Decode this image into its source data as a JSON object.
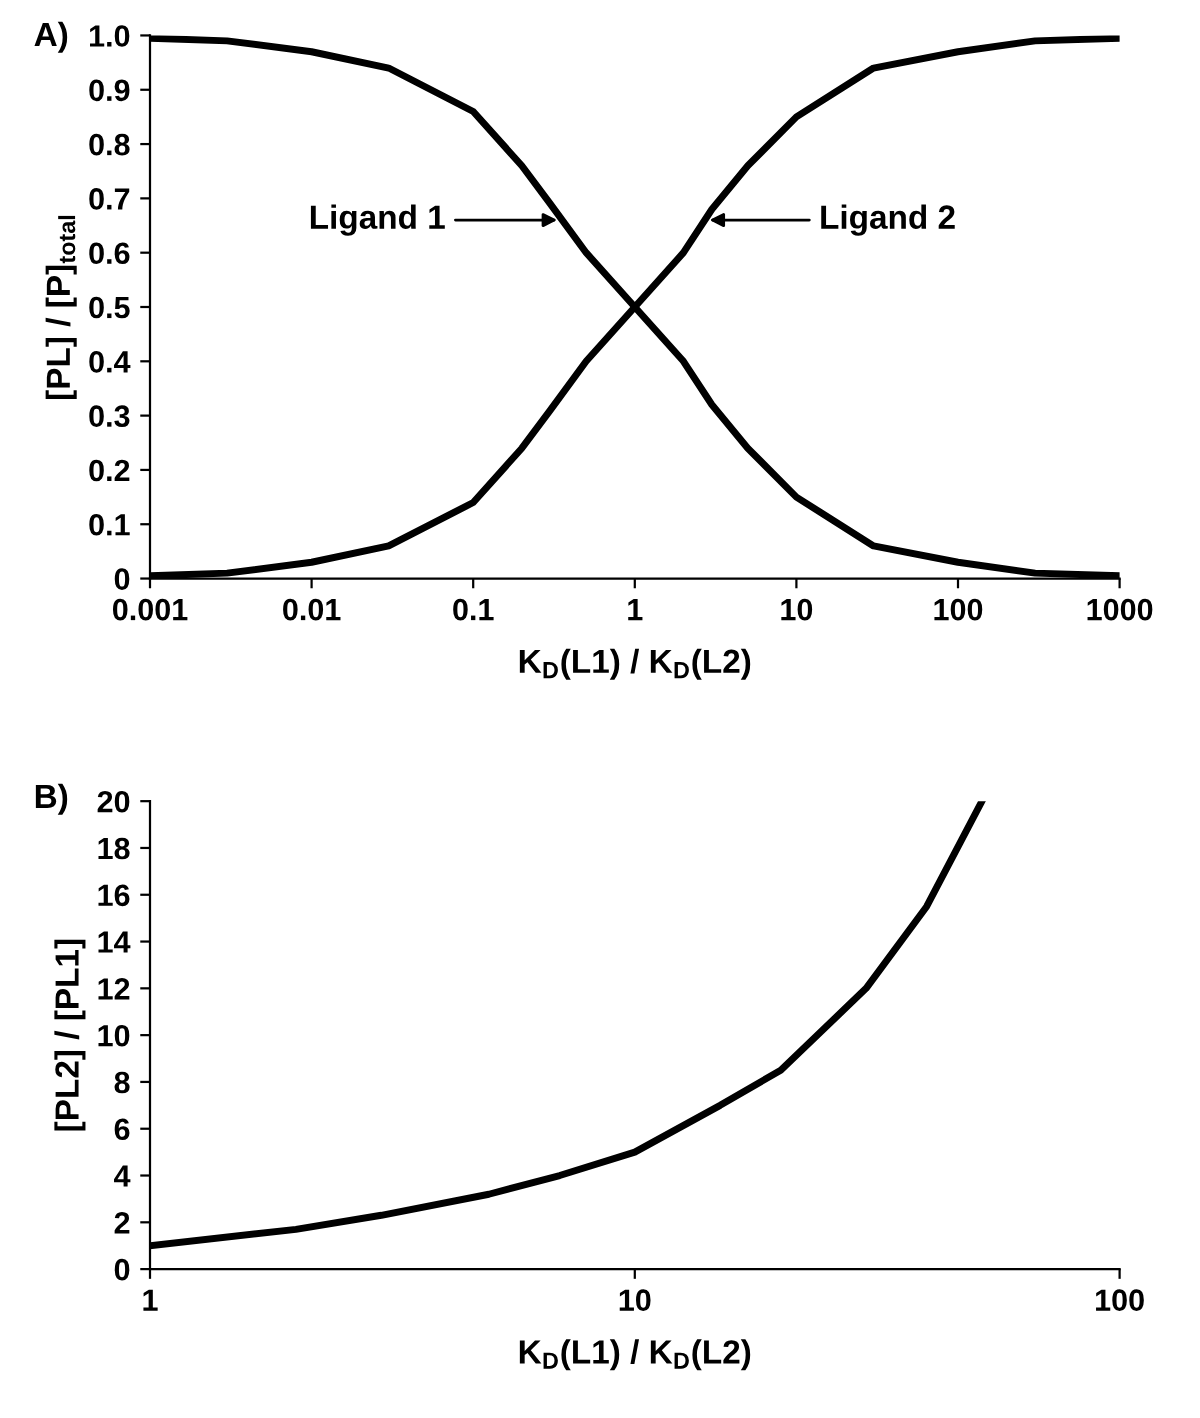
{
  "chart_data": [
    {
      "type": "line",
      "title": "A)",
      "xlabel": "K$_{D}$(L1) / K$_{D}$(L2)",
      "ylabel": "[PL] / [P]$_{total}$",
      "log": "x",
      "x": [
        0.001,
        0.003,
        0.01,
        0.03,
        0.1,
        0.2,
        0.3,
        0.5,
        1,
        2,
        3,
        5,
        10,
        30,
        100,
        300,
        1000
      ],
      "series": [
        {
          "color": "#000000",
          "values": [
            0.995,
            0.99,
            0.97,
            0.94,
            0.86,
            0.76,
            0.69,
            0.6,
            0.5,
            0.4,
            0.32,
            0.24,
            0.15,
            0.06,
            0.03,
            0.01,
            0.005
          ]
        },
        {
          "color": "#000000",
          "values": [
            0.005,
            0.01,
            0.03,
            0.06,
            0.14,
            0.24,
            0.31,
            0.4,
            0.5,
            0.6,
            0.68,
            0.76,
            0.85,
            0.94,
            0.97,
            0.99,
            0.995
          ]
        }
      ],
      "xlim": [
        0.001,
        1000
      ],
      "xticks": [
        {
          "value": 0.001,
          "label": "0.001"
        },
        {
          "value": 0.01,
          "label": "0.01"
        },
        {
          "value": 0.1,
          "label": "0.1"
        },
        1,
        10,
        100,
        1000
      ],
      "ylim": [
        0,
        1
      ],
      "yticks": [
        0,
        {
          "value": 0.1,
          "label": "0.1"
        },
        {
          "value": 0.2,
          "label": "0.2"
        },
        {
          "value": 0.3,
          "label": "0.3"
        },
        {
          "value": 0.4,
          "label": "0.4"
        },
        {
          "value": 0.5,
          "label": "0.5"
        },
        {
          "value": 0.6,
          "label": "0.6"
        },
        {
          "value": 0.7,
          "label": "0.7"
        },
        {
          "value": 0.8,
          "label": "0.8"
        },
        {
          "value": 0.9,
          "label": "0.9"
        },
        {
          "value": 1,
          "label": "1.0"
        }
      ],
      "annotations": [
        "Ligand 1",
        "Ligand 2"
      ],
      "grid": false,
      "legend": false
    },
    {
      "type": "line",
      "title": "B)",
      "xlabel": "K$_{D}$(L1) / K$_{D}$(L2)",
      "ylabel": "[PL2] / [PL1]",
      "log": "x",
      "x": [
        1,
        2,
        3,
        5,
        7,
        10,
        15,
        20,
        30,
        40,
        52
      ],
      "series": [
        {
          "color": "#000000",
          "values": [
            1.0,
            1.7,
            2.3,
            3.2,
            4.0,
            5.0,
            7.0,
            8.5,
            12,
            15.5,
            20
          ]
        }
      ],
      "xlim": [
        1,
        100
      ],
      "xticks": [
        1,
        10,
        100
      ],
      "ylim": [
        0,
        20
      ],
      "yticks": [
        0,
        2,
        4,
        6,
        8,
        10,
        12,
        14,
        16,
        18,
        20
      ],
      "grid": false,
      "legend": false
    }
  ]
}
